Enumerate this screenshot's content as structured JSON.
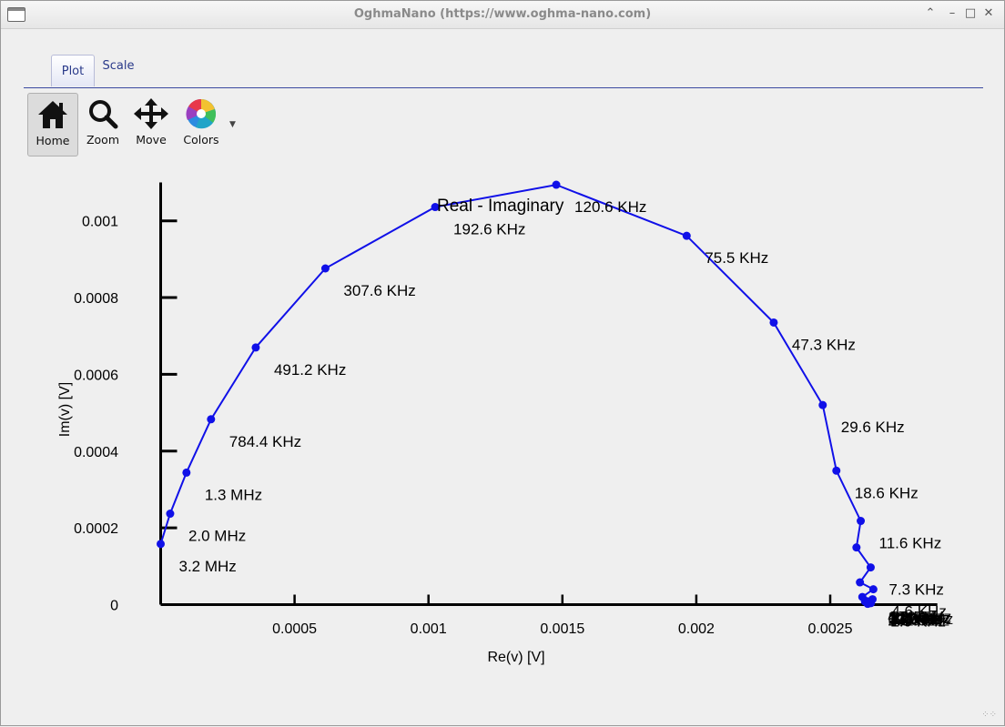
{
  "window": {
    "title": "OghmaNano (https://www.oghma-nano.com)"
  },
  "tabs": [
    {
      "label": "Plot",
      "active": true
    },
    {
      "label": "Scale",
      "active": false
    }
  ],
  "toolbar": {
    "home_label": "Home",
    "zoom_label": "Zoom",
    "move_label": "Move",
    "colors_label": "Colors"
  },
  "colors": {
    "series": "#1010e8",
    "axis": "#000000",
    "tab_accent": "#3b4aa0"
  },
  "chart_data": {
    "type": "scatter",
    "title": "Real - Imaginary",
    "xlabel": "Re(v) [V]",
    "ylabel": "Im(v) [V]",
    "xlim": [
      0,
      0.0029
    ],
    "ylim": [
      0,
      0.0011
    ],
    "xticks": [
      {
        "value": 0.0005,
        "label": "0.0005"
      },
      {
        "value": 0.001,
        "label": "0.001"
      },
      {
        "value": 0.0015,
        "label": "0.0015"
      },
      {
        "value": 0.002,
        "label": "0.002"
      },
      {
        "value": 0.0025,
        "label": "0.0025"
      }
    ],
    "yticks": [
      {
        "value": 0,
        "label": "0"
      },
      {
        "value": 0.0002,
        "label": "0.0002"
      },
      {
        "value": 0.0004,
        "label": "0.0004"
      },
      {
        "value": 0.0006,
        "label": "0.0006"
      },
      {
        "value": 0.0008,
        "label": "0.0008"
      },
      {
        "value": 0.001,
        "label": "0.001"
      }
    ],
    "grid": false,
    "series": [
      {
        "line": true,
        "points": [
          {
            "x": 0.0,
            "y": 0.000158,
            "label": "3.2 MHz"
          },
          {
            "x": 3.55e-05,
            "y": 0.000237,
            "label": "2.0 MHz"
          },
          {
            "x": 9.63e-05,
            "y": 0.000344,
            "label": "1.3 MHz"
          },
          {
            "x": 0.000188,
            "y": 0.000483,
            "label": "784.4 KHz"
          },
          {
            "x": 0.000355,
            "y": 0.00067,
            "label": "491.2 KHz"
          },
          {
            "x": 0.000615,
            "y": 0.000876,
            "label": "307.6 KHz"
          },
          {
            "x": 0.001025,
            "y": 0.001036,
            "label": "192.6 KHz"
          },
          {
            "x": 0.001477,
            "y": 0.001094,
            "label": "120.6 KHz"
          },
          {
            "x": 0.001964,
            "y": 0.000961,
            "label": "75.5 KHz"
          },
          {
            "x": 0.002289,
            "y": 0.000735,
            "label": "47.3 KHz"
          },
          {
            "x": 0.002472,
            "y": 0.00052,
            "label": "29.6 KHz"
          },
          {
            "x": 0.002523,
            "y": 0.000349,
            "label": "18.6 KHz"
          },
          {
            "x": 0.002614,
            "y": 0.000218,
            "label": "11.6 KHz"
          },
          {
            "x": 0.002598,
            "y": 0.000149,
            "label": ""
          },
          {
            "x": 0.002651,
            "y": 9.7e-05,
            "label": "7.3 KHz"
          },
          {
            "x": 0.002611,
            "y": 5.8e-05,
            "label": ""
          },
          {
            "x": 0.002661,
            "y": 4e-05,
            "label": "4.6 KHz"
          },
          {
            "x": 0.00262,
            "y": 2e-05,
            "label": ""
          },
          {
            "x": 0.002658,
            "y": 1.4e-05,
            "label": "2.9 KHz"
          },
          {
            "x": 0.00263,
            "y": 8e-06,
            "label": ""
          },
          {
            "x": 0.002652,
            "y": 4e-06,
            "label": ""
          },
          {
            "x": 0.00264,
            "y": 2e-06,
            "label": ""
          }
        ]
      }
    ],
    "crowded_label_stack": [
      "1.8 KHz",
      "711.0 Hz",
      "447.0 Hz",
      "281.0 Hz",
      "176.0 Hz",
      "111.0 Hz",
      "69.0 Hz",
      "44.0 Hz",
      "28.0 Hz",
      "17.0 Hz",
      "11.0 Hz",
      "7.0 Hz",
      "4.0 Hz",
      "3.0 Hz",
      "2.0 Hz",
      "1.0 Hz"
    ]
  }
}
